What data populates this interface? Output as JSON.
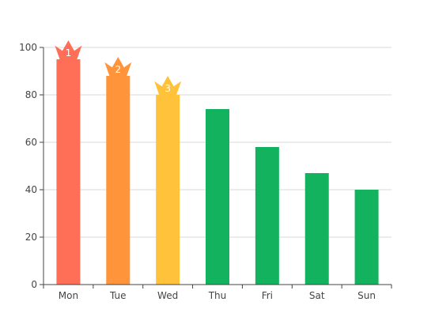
{
  "chart_data": {
    "type": "bar",
    "title": "",
    "xlabel": "",
    "ylabel": "",
    "categories": [
      "Mon",
      "Tue",
      "Wed",
      "Thu",
      "Fri",
      "Sat",
      "Sun"
    ],
    "values": [
      95,
      88,
      80,
      74,
      58,
      47,
      40
    ],
    "ylim": [
      0,
      100
    ],
    "yticks": [
      0,
      20,
      40,
      60,
      80,
      100
    ],
    "grid": true,
    "ranks": [
      {
        "category": "Mon",
        "rank": "1",
        "color": "#ff6e57"
      },
      {
        "category": "Tue",
        "rank": "2",
        "color": "#ff943b"
      },
      {
        "category": "Wed",
        "rank": "3",
        "color": "#ffc23a"
      }
    ],
    "default_bar_color": "#12b25e"
  },
  "colors": {
    "gridline": "#d9d9d9",
    "axis": "#444444"
  }
}
